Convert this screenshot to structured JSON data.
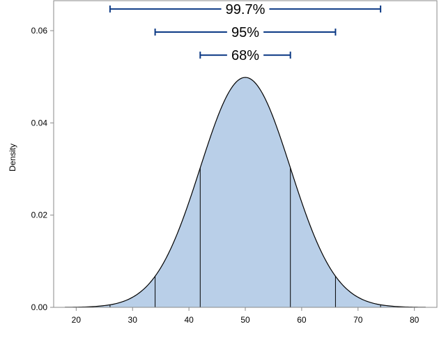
{
  "chart_data": {
    "type": "area",
    "title": "",
    "xlabel": "",
    "ylabel": "Density",
    "xlim": [
      16,
      84
    ],
    "ylim": [
      0,
      0.0665
    ],
    "grid": false,
    "distribution": {
      "kind": "normal",
      "mean": 50,
      "sd": 8,
      "x_from": 18,
      "x_to": 82
    },
    "x_ticks": [
      20,
      30,
      40,
      50,
      60,
      70,
      80
    ],
    "y_ticks": [
      0,
      0.02,
      0.04,
      0.06
    ],
    "x_tick_labels": [
      "20",
      "30",
      "40",
      "50",
      "60",
      "70",
      "80"
    ],
    "y_tick_labels": [
      "0.00",
      "0.02",
      "0.04",
      "0.06"
    ],
    "reference_lines_x": [
      26,
      34,
      42,
      58,
      66,
      74
    ],
    "intervals": [
      {
        "label": "99.7%",
        "low": 26,
        "high": 74,
        "y": 0.0647
      },
      {
        "label": "95%",
        "low": 34,
        "high": 66,
        "y": 0.0597
      },
      {
        "label": "68%",
        "low": 42,
        "high": 58,
        "y": 0.0547
      }
    ],
    "colors": {
      "fill": "#b9cfe8",
      "curve": "#000000",
      "interval": "#0d3a85",
      "axis": "#888888",
      "text": "#000000"
    }
  }
}
